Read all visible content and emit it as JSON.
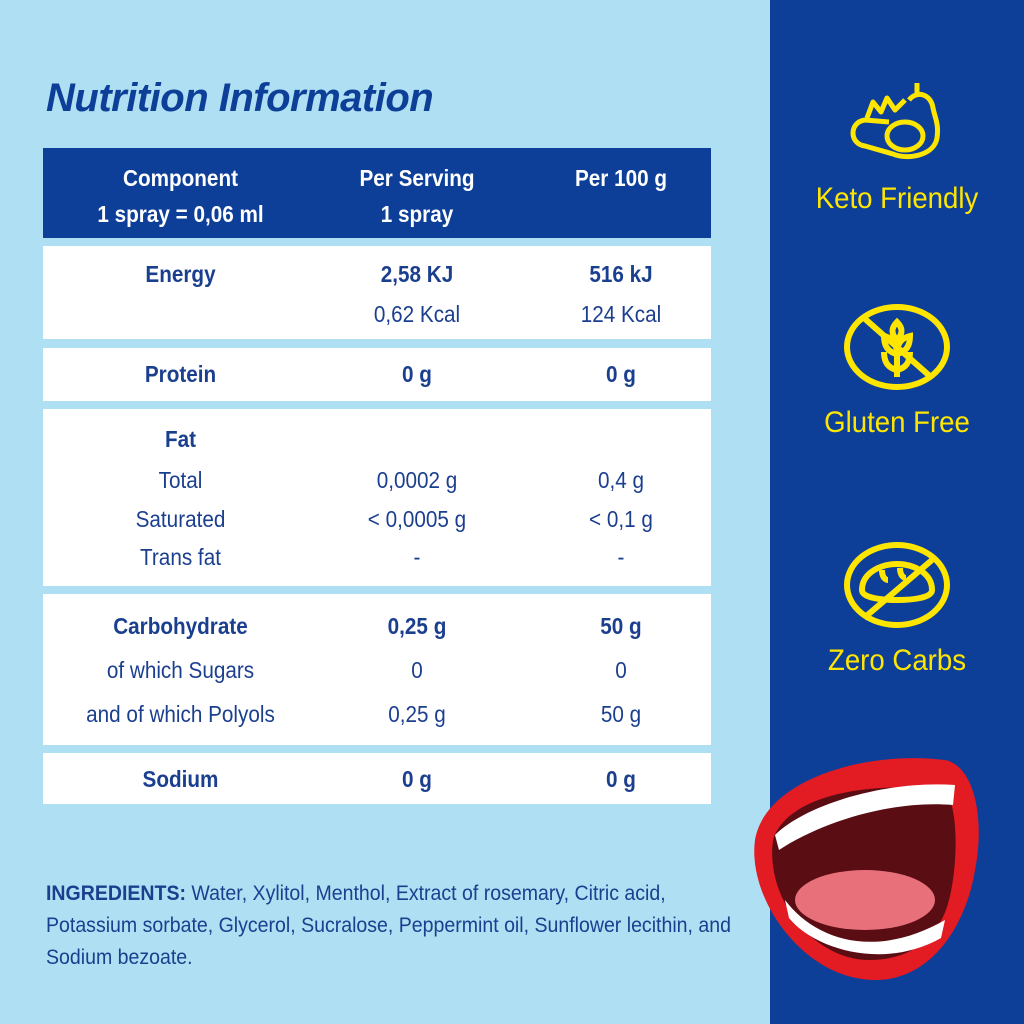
{
  "title": "Nutrition Information",
  "table": {
    "headers": [
      [
        "Component",
        "1 spray = 0,06 ml"
      ],
      [
        "Per Serving",
        "1 spray"
      ],
      [
        "Per 100 g",
        ""
      ]
    ],
    "energy": {
      "label": "Energy",
      "serving": [
        "2,58 KJ",
        "0,62 Kcal"
      ],
      "per100": [
        "516 kJ",
        "124 Kcal"
      ]
    },
    "protein": {
      "label": "Protein",
      "serving": "0 g",
      "per100": "0 g"
    },
    "fat": {
      "label": "Fat",
      "rows": [
        {
          "label": "Total",
          "serving": "0,0002 g",
          "per100": "0,4 g"
        },
        {
          "label": "Saturated",
          "serving": "< 0,0005 g",
          "per100": "< 0,1 g"
        },
        {
          "label": "Trans fat",
          "serving": "-",
          "per100": "-"
        }
      ]
    },
    "carbohydrate": {
      "label": "Carbohydrate",
      "serving": "0,25 g",
      "per100": "50 g",
      "rows": [
        {
          "label": "of which Sugars",
          "serving": "0",
          "per100": "0"
        },
        {
          "label": "and of which Polyols",
          "serving": "0,25 g",
          "per100": "50 g"
        }
      ]
    },
    "sodium": {
      "label": "Sodium",
      "serving": "0 g",
      "per100": "0 g"
    }
  },
  "badges": [
    {
      "label": "Keto Friendly",
      "icon": "avocado-icon"
    },
    {
      "label": "Gluten Free",
      "icon": "no-wheat-icon"
    },
    {
      "label": "Zero Carbs",
      "icon": "no-bread-icon"
    }
  ],
  "ingredients": {
    "label": "INGREDIENTS:",
    "text": " Water, Xylitol, Menthol, Extract of rosemary, Citric acid, Potassium sorbate, Glycerol, Sucralose, Peppermint oil, Sunflower lecithin, and Sodium bezoate."
  },
  "colors": {
    "background": "#aedff2",
    "brand": "#0d3f99",
    "accent": "#ffe600"
  }
}
